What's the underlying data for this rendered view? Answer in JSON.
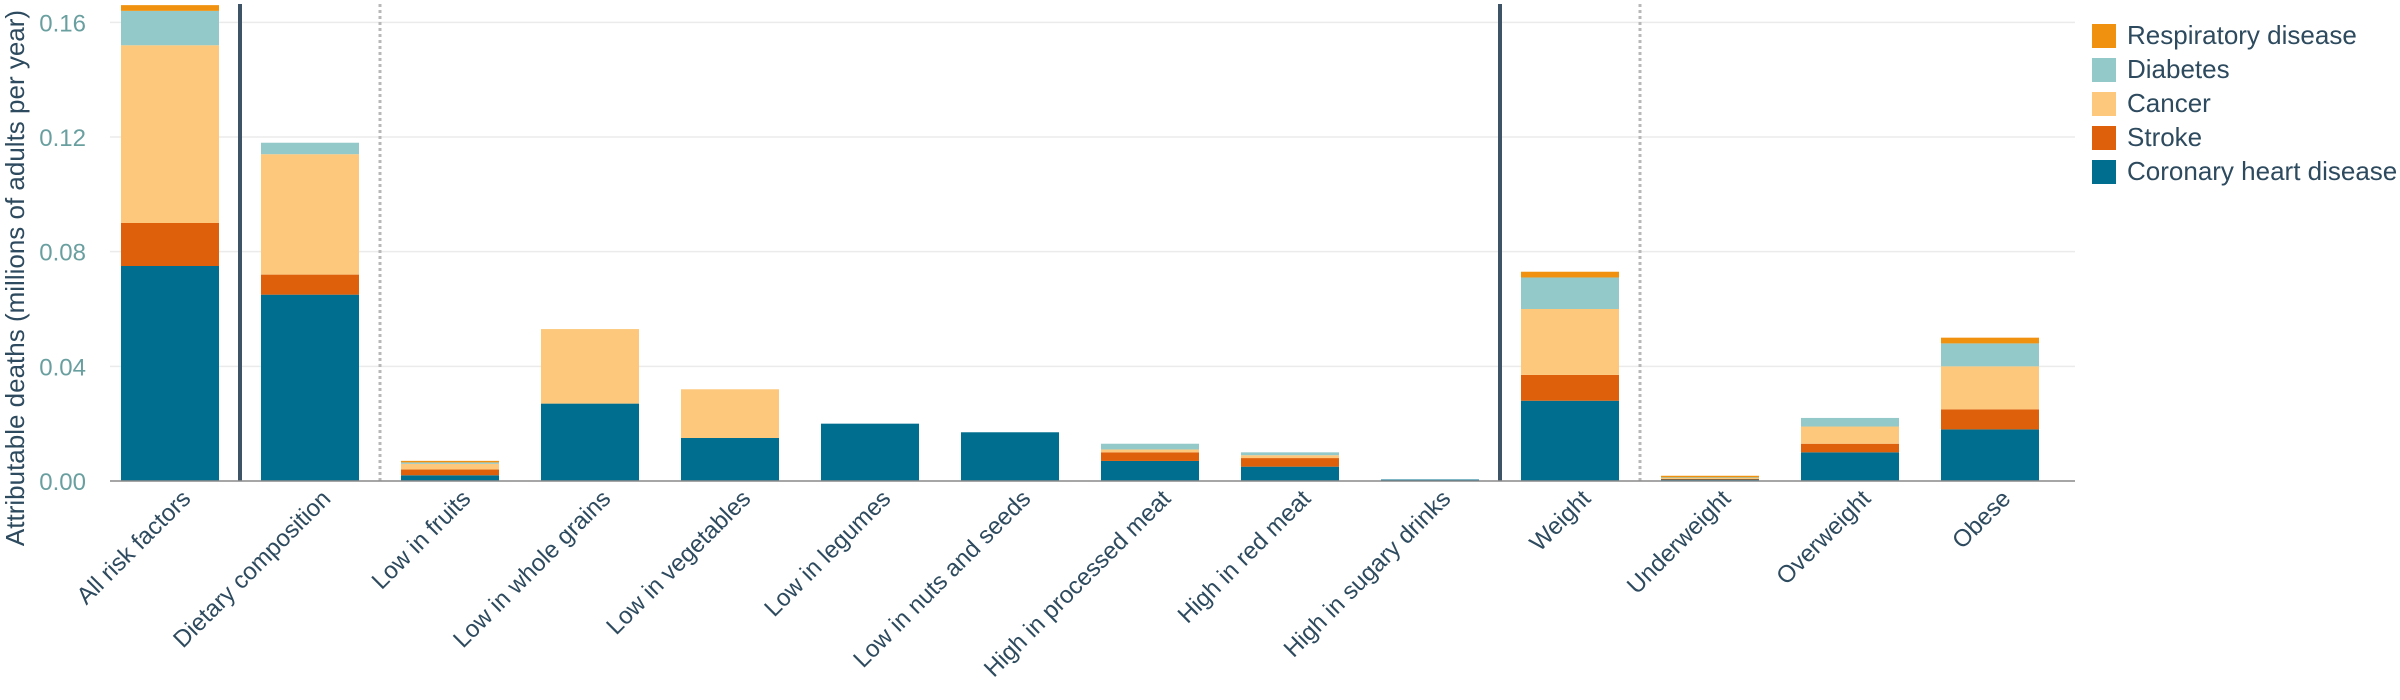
{
  "chart_data": {
    "type": "bar",
    "stacked": true,
    "ylabel": "Attributable deaths (millions of adults per year)",
    "ylim": [
      0,
      0.165
    ],
    "yticks": [
      "0.00",
      "0.04",
      "0.08",
      "0.12",
      "0.16"
    ],
    "grid": true,
    "legend_position": "right",
    "categories": [
      "All risk factors",
      "Dietary composition",
      "Low in fruits",
      "Low in whole grains",
      "Low in vegetables",
      "Low in legumes",
      "Low in nuts and seeds",
      "High in processed meat",
      "High in red meat",
      "High in sugary drinks",
      "Weight",
      "Underweight",
      "Overweight",
      "Obese"
    ],
    "series": [
      {
        "name": "Coronary heart disease",
        "color": "#006f8f",
        "values": [
          0.075,
          0.065,
          0.002,
          0.027,
          0.015,
          0.02,
          0.017,
          0.007,
          0.005,
          0.0005,
          0.028,
          0.0005,
          0.01,
          0.018
        ]
      },
      {
        "name": "Stroke",
        "color": "#de600b",
        "values": [
          0.015,
          0.007,
          0.002,
          0,
          0,
          0,
          0,
          0.003,
          0.003,
          0,
          0.009,
          0.0002,
          0.003,
          0.007
        ]
      },
      {
        "name": "Cancer",
        "color": "#fdc87c",
        "values": [
          0.062,
          0.042,
          0.002,
          0.026,
          0.017,
          0,
          0,
          0.001,
          0.001,
          0,
          0.023,
          0.0004,
          0.006,
          0.015
        ]
      },
      {
        "name": "Diabetes",
        "color": "#93c9c8",
        "values": [
          0.012,
          0.004,
          0.0005,
          0,
          0,
          0,
          0,
          0.002,
          0.001,
          0,
          0.011,
          0.0002,
          0.003,
          0.008
        ]
      },
      {
        "name": "Respiratory disease",
        "color": "#f0920f",
        "values": [
          0.002,
          0,
          0.0005,
          0,
          0,
          0,
          0,
          0,
          0,
          0,
          0.002,
          0.0003,
          0,
          0.002
        ]
      }
    ],
    "legend_order": [
      "Respiratory disease",
      "Diabetes",
      "Cancer",
      "Stroke",
      "Coronary heart disease"
    ],
    "separators": [
      {
        "after_index": 0,
        "style": "solid"
      },
      {
        "after_index": 1,
        "style": "dotted"
      },
      {
        "after_index": 9,
        "style": "solid"
      },
      {
        "after_index": 10,
        "style": "dotted"
      }
    ]
  }
}
